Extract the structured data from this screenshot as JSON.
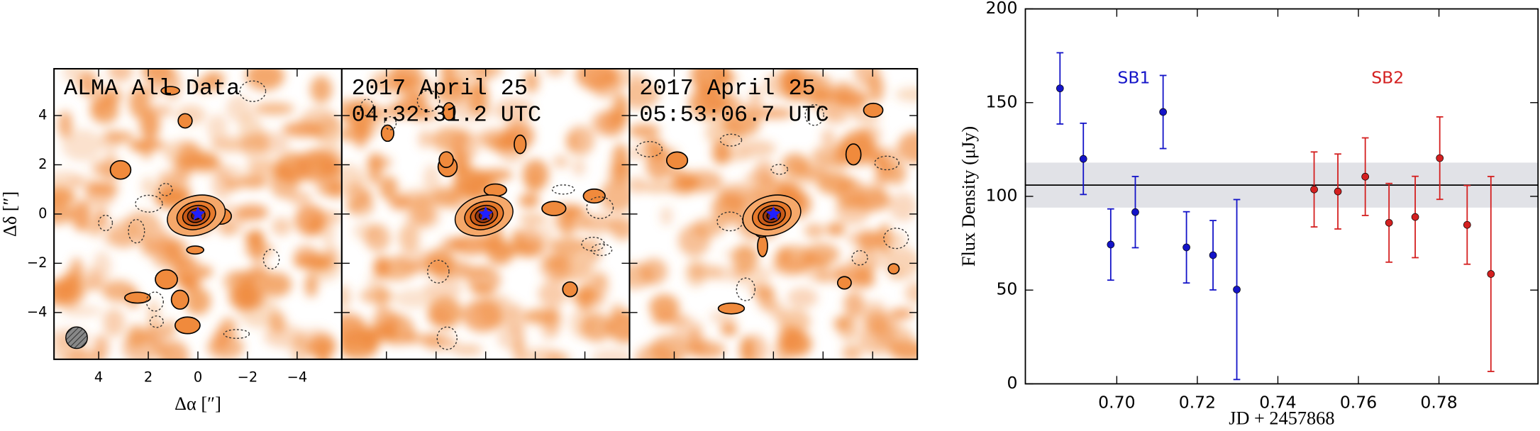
{
  "chart_data": [
    {
      "type": "map",
      "panels": [
        [
          "ALMA All Data"
        ],
        [
          "2017 April 25",
          "04:32:31.2 UTC"
        ],
        [
          "2017 April 25",
          "05:53:06.7 UTC"
        ]
      ],
      "xlabel": "Δα [″]",
      "ylabel": "Δδ [″]",
      "xlim": [
        5.8,
        -5.8
      ],
      "ylim": [
        -5.9,
        5.9
      ],
      "xticks": [
        4,
        2,
        0,
        {
          "value": -2,
          "label": "−2"
        },
        {
          "value": -4,
          "label": "−4"
        }
      ],
      "yticks": [
        {
          "value": -4,
          "label": "−4"
        },
        {
          "value": -2,
          "label": "−2"
        },
        0,
        2,
        4
      ],
      "color": "#f08a3c"
    },
    {
      "type": "errorbar",
      "xlabel": "JD + 2457868",
      "ylabel": "Flux Density (μJy)",
      "xlim": [
        0.6773,
        0.8046
      ],
      "ylim": [
        0,
        200
      ],
      "xticks": [
        {
          "value": 0.7,
          "label": "0.70"
        },
        0.72,
        0.74,
        0.76,
        0.78
      ],
      "yticks": [
        0,
        50,
        100,
        150,
        200
      ],
      "mean": 106,
      "band": [
        94,
        118
      ],
      "series": [
        {
          "name": "SB1",
          "color": "#1414c8",
          "x": [
            0.6859,
            0.6917,
            0.6985,
            0.7046,
            0.7115,
            0.7173,
            0.7239,
            0.7298
          ],
          "values": [
            157.6,
            120,
            74.3,
            91.6,
            145,
            72.8,
            68.6,
            50.3
          ],
          "errors": [
            19,
            19,
            19,
            19,
            19.5,
            19,
            18.5,
            48
          ]
        },
        {
          "name": "SB2",
          "color": "#d42020",
          "x": [
            0.749,
            0.7549,
            0.7617,
            0.7676,
            0.7741,
            0.7802,
            0.787,
            0.7929
          ],
          "values": [
            103.7,
            102.6,
            110.5,
            85.9,
            89,
            120.4,
            84.8,
            58.6
          ],
          "errors": [
            20,
            20,
            20.7,
            21,
            21.7,
            22,
            21,
            52
          ]
        }
      ]
    }
  ]
}
